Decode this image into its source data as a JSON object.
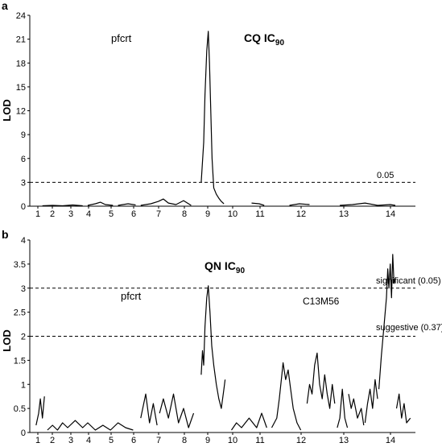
{
  "figure": {
    "panels": [
      {
        "letter": "a",
        "title_main": "CQ IC",
        "title_sub": "90",
        "ylabel": "LOD",
        "yticks": [
          0,
          3,
          6,
          9,
          12,
          15,
          18,
          21,
          24
        ],
        "ylim": [
          0,
          24
        ],
        "xticks": [
          "1",
          "2",
          "3",
          "4",
          "5",
          "6",
          "7",
          "8",
          "9",
          "10",
          "11",
          "12",
          "13",
          "14"
        ],
        "annotations": [
          {
            "text": "pfcrt"
          },
          {
            "text": "0.05"
          }
        ]
      },
      {
        "letter": "b",
        "title_main": "QN IC",
        "title_sub": "90",
        "ylabel": "LOD",
        "yticks": [
          0,
          0.5,
          1,
          1.5,
          2,
          2.5,
          3,
          3.5,
          4
        ],
        "ylim": [
          0,
          4
        ],
        "xticks": [
          "1",
          "2",
          "3",
          "4",
          "5",
          "6",
          "7",
          "8",
          "9",
          "10",
          "11",
          "12",
          "13",
          "14"
        ],
        "annotations": [
          {
            "text": "pfcrt"
          },
          {
            "text": "C13M56"
          },
          {
            "text": "significant (0.05)"
          },
          {
            "text": "suggestive (0.37)"
          }
        ]
      }
    ]
  },
  "chart_data": [
    {
      "type": "line",
      "title": "CQ IC90",
      "xlabel": "",
      "ylabel": "LOD",
      "ylim": [
        0,
        24
      ],
      "x_categories": [
        "1",
        "2",
        "3",
        "4",
        "5",
        "6",
        "7",
        "8",
        "9",
        "10",
        "11",
        "12",
        "13",
        "14"
      ],
      "thresholds": [
        {
          "label": "0.05",
          "value": 3
        }
      ],
      "series": [
        {
          "segments": [
            [
              [
                0.2,
                0.05
              ],
              [
                0.6,
                0.1
              ],
              [
                1.0,
                0.05
              ],
              [
                1.4,
                0.15
              ],
              [
                1.8,
                0.05
              ]
            ],
            [
              [
                2.0,
                0.1
              ],
              [
                2.3,
                0.3
              ],
              [
                2.5,
                0.5
              ],
              [
                2.7,
                0.2
              ],
              [
                3.0,
                0.1
              ]
            ],
            [
              [
                3.2,
                0.1
              ],
              [
                3.6,
                0.3
              ],
              [
                3.9,
                0.15
              ]
            ],
            [
              [
                4.1,
                0.1
              ],
              [
                4.5,
                0.3
              ],
              [
                4.8,
                0.6
              ],
              [
                5.0,
                0.9
              ],
              [
                5.2,
                0.4
              ],
              [
                5.5,
                0.2
              ],
              [
                5.8,
                0.7
              ],
              [
                6.1,
                0.1
              ]
            ],
            [
              [
                6.5,
                3.0
              ],
              [
                6.6,
                8.0
              ],
              [
                6.65,
                14.0
              ],
              [
                6.72,
                19.5
              ],
              [
                6.78,
                22.0
              ],
              [
                6.83,
                18.0
              ],
              [
                6.88,
                12.0
              ],
              [
                6.93,
                6.0
              ],
              [
                7.0,
                2.3
              ],
              [
                7.1,
                1.5
              ],
              [
                7.2,
                1.0
              ],
              [
                7.3,
                0.6
              ],
              [
                7.4,
                0.3
              ]
            ],
            [
              [
                8.5,
                0.4
              ],
              [
                8.8,
                0.3
              ],
              [
                9.0,
                0.1
              ]
            ],
            [
              [
                10.0,
                0.1
              ],
              [
                10.4,
                0.3
              ],
              [
                10.8,
                0.2
              ]
            ],
            [
              [
                12.0,
                0.1
              ],
              [
                12.5,
                0.2
              ],
              [
                13.0,
                0.4
              ],
              [
                13.5,
                0.1
              ],
              [
                14.0,
                0.2
              ],
              [
                14.2,
                0.1
              ]
            ]
          ]
        }
      ]
    },
    {
      "type": "line",
      "title": "QN IC90",
      "xlabel": "",
      "ylabel": "LOD",
      "ylim": [
        0,
        4
      ],
      "x_categories": [
        "1",
        "2",
        "3",
        "4",
        "5",
        "6",
        "7",
        "8",
        "9",
        "10",
        "11",
        "12",
        "13",
        "14"
      ],
      "thresholds": [
        {
          "label": "significant (0.05)",
          "value": 3
        },
        {
          "label": "suggestive (0.37)",
          "value": 2
        }
      ],
      "series": [
        {
          "segments": [
            [
              [
                -0.05,
                0.15
              ],
              [
                0.05,
                0.4
              ],
              [
                0.12,
                0.7
              ],
              [
                0.2,
                0.3
              ],
              [
                0.28,
                0.75
              ]
            ],
            [
              [
                0.4,
                0.05
              ],
              [
                0.6,
                0.15
              ],
              [
                0.8,
                0.05
              ],
              [
                1.0,
                0.2
              ],
              [
                1.2,
                0.1
              ],
              [
                1.5,
                0.25
              ],
              [
                1.8,
                0.1
              ],
              [
                2.0,
                0.2
              ],
              [
                2.3,
                0.05
              ],
              [
                2.6,
                0.15
              ],
              [
                2.9,
                0.05
              ],
              [
                3.2,
                0.2
              ],
              [
                3.5,
                0.1
              ],
              [
                3.8,
                0.05
              ]
            ],
            [
              [
                4.1,
                0.3
              ],
              [
                4.3,
                0.8
              ],
              [
                4.45,
                0.2
              ],
              [
                4.6,
                0.6
              ],
              [
                4.75,
                0.15
              ]
            ],
            [
              [
                4.85,
                0.4
              ],
              [
                5.0,
                0.7
              ],
              [
                5.2,
                0.3
              ],
              [
                5.4,
                0.8
              ],
              [
                5.6,
                0.2
              ],
              [
                5.8,
                0.5
              ],
              [
                6.0,
                0.1
              ],
              [
                6.2,
                0.4
              ]
            ],
            [
              [
                6.5,
                1.2
              ],
              [
                6.55,
                1.7
              ],
              [
                6.6,
                1.4
              ],
              [
                6.65,
                2.2
              ],
              [
                6.72,
                2.8
              ],
              [
                6.78,
                3.05
              ],
              [
                6.85,
                2.5
              ],
              [
                6.92,
                1.8
              ],
              [
                7.0,
                1.4
              ],
              [
                7.1,
                1.0
              ],
              [
                7.2,
                0.7
              ],
              [
                7.3,
                0.5
              ],
              [
                7.4,
                0.9
              ],
              [
                7.45,
                1.1
              ]
            ],
            [
              [
                7.7,
                0.05
              ],
              [
                7.9,
                0.2
              ],
              [
                8.1,
                0.1
              ],
              [
                8.4,
                0.3
              ],
              [
                8.7,
                0.1
              ],
              [
                8.9,
                0.4
              ],
              [
                9.1,
                0.1
              ]
            ],
            [
              [
                9.3,
                0.1
              ],
              [
                9.5,
                0.3
              ],
              [
                9.6,
                0.7
              ],
              [
                9.7,
                1.2
              ],
              [
                9.75,
                1.45
              ],
              [
                9.85,
                1.1
              ],
              [
                9.95,
                1.3
              ],
              [
                10.05,
                0.9
              ],
              [
                10.15,
                0.5
              ],
              [
                10.3,
                0.2
              ],
              [
                10.45,
                0.05
              ]
            ],
            [
              [
                10.7,
                0.6
              ],
              [
                10.8,
                1.0
              ],
              [
                10.9,
                0.8
              ],
              [
                11.0,
                1.4
              ],
              [
                11.1,
                1.65
              ],
              [
                11.2,
                1.0
              ],
              [
                11.3,
                0.7
              ],
              [
                11.4,
                1.2
              ],
              [
                11.5,
                0.8
              ],
              [
                11.6,
                0.5
              ],
              [
                11.7,
                1.0
              ],
              [
                11.8,
                0.6
              ]
            ],
            [
              [
                11.9,
                0.1
              ],
              [
                12.0,
                0.3
              ],
              [
                12.05,
                0.6
              ],
              [
                12.1,
                0.9
              ],
              [
                12.2,
                0.3
              ],
              [
                12.3,
                0.1
              ]
            ],
            [
              [
                12.35,
                0.8
              ],
              [
                12.45,
                0.5
              ],
              [
                12.55,
                0.7
              ],
              [
                12.7,
                0.3
              ],
              [
                12.85,
                0.5
              ],
              [
                12.95,
                0.15
              ]
            ],
            [
              [
                13.0,
                0.2
              ],
              [
                13.1,
                0.6
              ],
              [
                13.2,
                0.9
              ],
              [
                13.3,
                0.5
              ],
              [
                13.4,
                1.1
              ],
              [
                13.5,
                0.7
              ]
            ],
            [
              [
                13.55,
                0.9
              ],
              [
                13.65,
                1.6
              ],
              [
                13.75,
                2.2
              ],
              [
                13.85,
                2.8
              ],
              [
                13.9,
                3.4
              ],
              [
                13.95,
                3.0
              ],
              [
                14.0,
                3.5
              ],
              [
                14.05,
                2.8
              ],
              [
                14.1,
                3.7
              ],
              [
                14.15,
                3.1
              ],
              [
                14.2,
                3.2
              ]
            ],
            [
              [
                14.25,
                0.5
              ],
              [
                14.35,
                0.8
              ],
              [
                14.45,
                0.3
              ],
              [
                14.55,
                0.6
              ],
              [
                14.65,
                0.2
              ],
              [
                14.8,
                0.3
              ]
            ]
          ]
        }
      ]
    }
  ]
}
